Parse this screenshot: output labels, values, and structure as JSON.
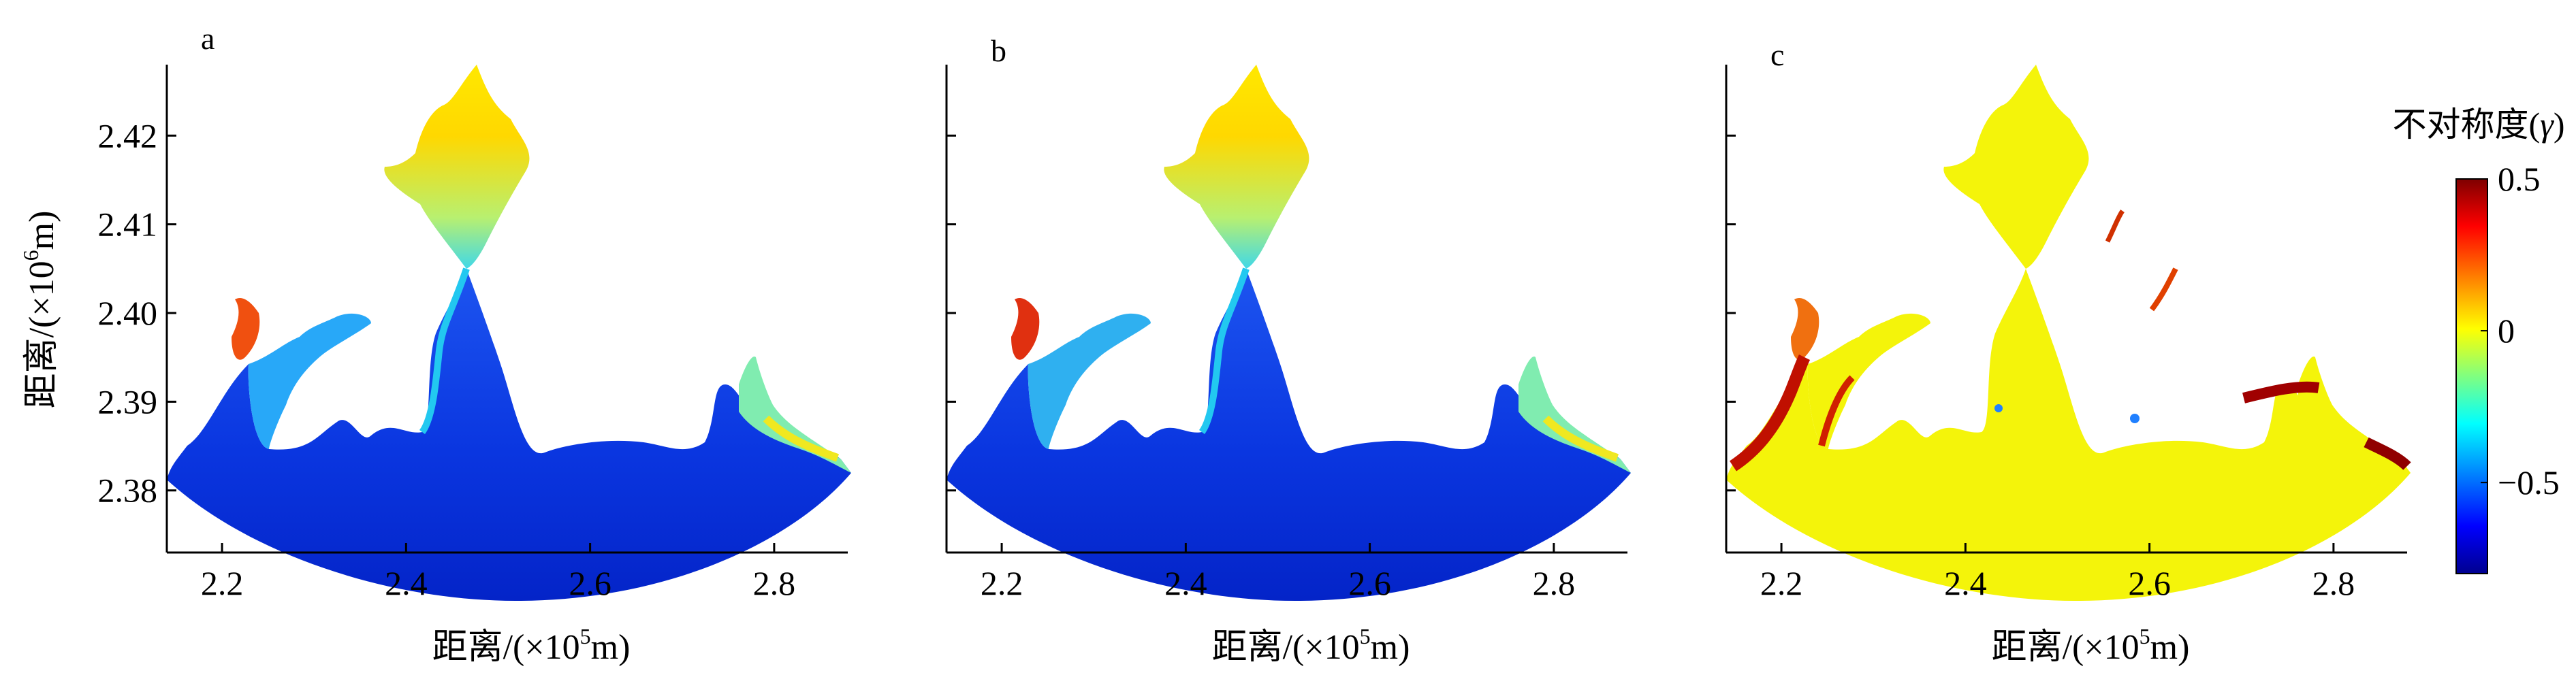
{
  "chart_data": [
    {
      "type": "heatmap",
      "panel_label": "a",
      "ylabel_prefix": "距离/(×10",
      "ylabel_exp": "6",
      "ylabel_suffix": "m)",
      "xlabel_prefix": "距离/(×10",
      "xlabel_exp": "5",
      "xlabel_suffix": "m)",
      "xlim": [
        2.14,
        2.88
      ],
      "ylim": [
        2.373,
        2.428
      ],
      "xticks": [
        "2.2",
        "2.4",
        "2.6",
        "2.8"
      ],
      "yticks": [
        "2.38",
        "2.39",
        "2.40",
        "2.41",
        "2.42"
      ],
      "field": "tidal asymmetry, open sea ≈ -0.7, upper bays ≈ 0 to 0.3"
    },
    {
      "type": "heatmap",
      "panel_label": "b",
      "xlabel_prefix": "距离/(×10",
      "xlabel_exp": "5",
      "xlabel_suffix": "m)",
      "xlim": [
        2.14,
        2.88
      ],
      "ylim": [
        2.373,
        2.428
      ],
      "xticks": [
        "2.2",
        "2.4",
        "2.6",
        "2.8"
      ],
      "field": "tidal asymmetry, open sea ≈ -0.7, upper bays ≈ 0 to 0.4"
    },
    {
      "type": "heatmap",
      "panel_label": "c",
      "xlabel_prefix": "距离/(×10",
      "xlabel_exp": "5",
      "xlabel_suffix": "m)",
      "xlim": [
        2.14,
        2.88
      ],
      "ylim": [
        2.373,
        2.428
      ],
      "xticks": [
        "2.2",
        "2.4",
        "2.6",
        "2.8"
      ],
      "field": "difference, mostly ≈ 0, coastal strips up to 0.5"
    }
  ],
  "colorbar": {
    "title_text": "不对称度(",
    "title_symbol": "γ",
    "title_close": ")",
    "range": [
      -0.8,
      0.5
    ],
    "ticks": [
      "0.5",
      "0",
      "−0.5"
    ],
    "tick_values": [
      0.5,
      0,
      -0.5
    ],
    "colors": [
      "#7f0000",
      "#ff0000",
      "#ff8000",
      "#ffff00",
      "#80ff80",
      "#00ffff",
      "#0080ff",
      "#0000ff",
      "#00008f"
    ]
  }
}
